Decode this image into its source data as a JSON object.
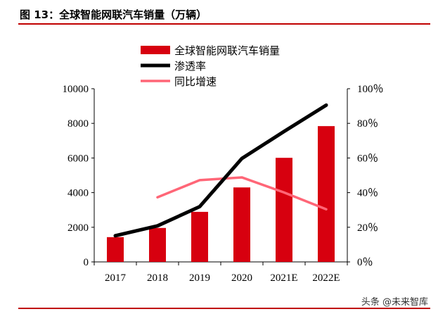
{
  "header": {
    "title": "图 13：全球智能网联汽车销量（万辆）"
  },
  "watermark": "头条 @未来智库",
  "chart_data": {
    "type": "bar+line",
    "title": "图 13：全球智能网联汽车销量（万辆）",
    "categories": [
      "2017",
      "2018",
      "2019",
      "2020",
      "2021E",
      "2022E"
    ],
    "series": [
      {
        "name": "全球智能网联汽车销量",
        "type": "bar",
        "axis": "left",
        "color": "#d7000f",
        "values": [
          1430,
          1960,
          2890,
          4300,
          6010,
          7840
        ]
      },
      {
        "name": "渗透率",
        "type": "line",
        "axis": "right",
        "color": "#000000",
        "values": [
          15.1,
          20.8,
          31.9,
          59.7,
          75.3,
          90.5
        ]
      },
      {
        "name": "同比增速",
        "type": "line",
        "axis": "right",
        "color": "#ff6677",
        "values": [
          null,
          37.3,
          47.2,
          48.8,
          40.1,
          30.4
        ]
      }
    ],
    "left_axis": {
      "ylim": [
        0,
        10000
      ],
      "ticks": [
        "0",
        "2000",
        "4000",
        "6000",
        "8000",
        "10000"
      ]
    },
    "right_axis": {
      "ylim": [
        0,
        100
      ],
      "ticks": [
        "0％",
        "20％",
        "40％",
        "60％",
        "80％",
        "100％"
      ]
    },
    "grid": false,
    "legend": "top-center"
  }
}
